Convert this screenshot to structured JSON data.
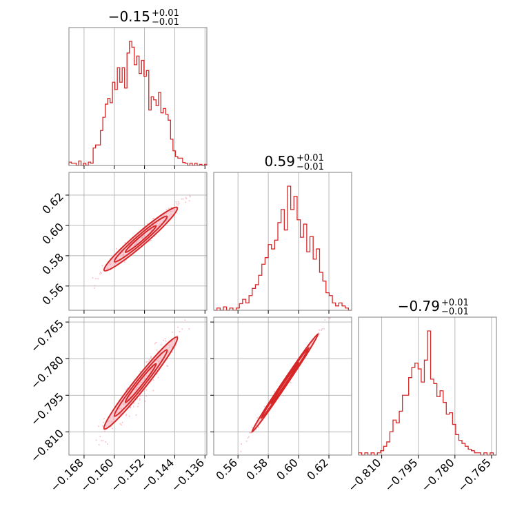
{
  "chart_data": {
    "type": "corner",
    "colors": {
      "line": "#d62728",
      "fill": "#f4a6b3",
      "grid": "#b0b0b0",
      "frame": "#808080"
    },
    "grid": true,
    "params": [
      {
        "title_main": "−0.15",
        "title_plus": "+0.01",
        "title_minus": "−0.01",
        "range": [
          -0.172,
          -0.1355
        ],
        "ticks": [
          -0.168,
          -0.16,
          -0.152,
          -0.144,
          -0.136
        ],
        "tick_labels": [
          "−0.168",
          "−0.160",
          "−0.152",
          "−0.144",
          "−0.136"
        ],
        "hist": [
          0.027,
          0.018,
          0.018,
          0.0,
          0.036,
          0.0,
          0.018,
          0.0,
          0.027,
          0.018,
          0.141,
          0.165,
          0.165,
          0.282,
          0.388,
          0.494,
          0.541,
          0.506,
          0.671,
          0.612,
          0.788,
          0.671,
          0.788,
          0.624,
          0.906,
          1.0,
          0.953,
          0.812,
          0.882,
          0.741,
          0.847,
          0.718,
          0.765,
          0.447,
          0.553,
          0.529,
          0.482,
          0.588,
          0.424,
          0.459,
          0.412,
          0.365,
          0.212,
          0.118,
          0.071,
          0.059,
          0.059,
          0.024,
          0.018,
          0.0,
          0.018,
          0.0,
          0.018,
          0.0,
          0.009,
          0.0,
          0.009
        ]
      },
      {
        "title_main": "0.59",
        "title_plus": "+0.01",
        "title_minus": "−0.01",
        "range": [
          0.544,
          0.635
        ],
        "ticks": [
          0.56,
          0.58,
          0.6,
          0.62
        ],
        "tick_labels": [
          "0.56",
          "0.58",
          "0.60",
          "0.62"
        ],
        "hist": [
          0.0,
          0.018,
          0.0,
          0.027,
          0.0,
          0.018,
          0.0,
          0.018,
          0.053,
          0.088,
          0.059,
          0.118,
          0.176,
          0.206,
          0.282,
          0.371,
          0.424,
          0.529,
          0.494,
          0.565,
          0.706,
          0.812,
          0.647,
          1.0,
          0.812,
          0.918,
          0.729,
          0.588,
          0.694,
          0.471,
          0.594,
          0.412,
          0.494,
          0.306,
          0.235,
          0.141,
          0.118,
          0.059,
          0.035,
          0.059,
          0.035,
          0.018,
          0.0
        ]
      },
      {
        "title_main": "−0.79",
        "title_plus": "+0.01",
        "title_minus": "−0.01",
        "range": [
          -0.8195,
          -0.763
        ],
        "ticks": [
          -0.81,
          -0.795,
          -0.78,
          -0.765
        ],
        "tick_labels": [
          "−0.810",
          "−0.795",
          "−0.780",
          "−0.765"
        ],
        "hist": [
          0.018,
          0.0,
          0.018,
          0.0,
          0.018,
          0.0,
          0.018,
          0.035,
          0.071,
          0.106,
          0.188,
          0.282,
          0.259,
          0.353,
          0.482,
          0.482,
          0.624,
          0.706,
          0.741,
          0.694,
          0.588,
          0.765,
          1.0,
          0.612,
          0.576,
          0.471,
          0.518,
          0.424,
          0.329,
          0.341,
          0.247,
          0.165,
          0.118,
          0.094,
          0.071,
          0.047,
          0.035,
          0.018,
          0.018,
          0.0,
          0.018,
          0.0,
          0.018,
          0.0
        ]
      }
    ]
  }
}
